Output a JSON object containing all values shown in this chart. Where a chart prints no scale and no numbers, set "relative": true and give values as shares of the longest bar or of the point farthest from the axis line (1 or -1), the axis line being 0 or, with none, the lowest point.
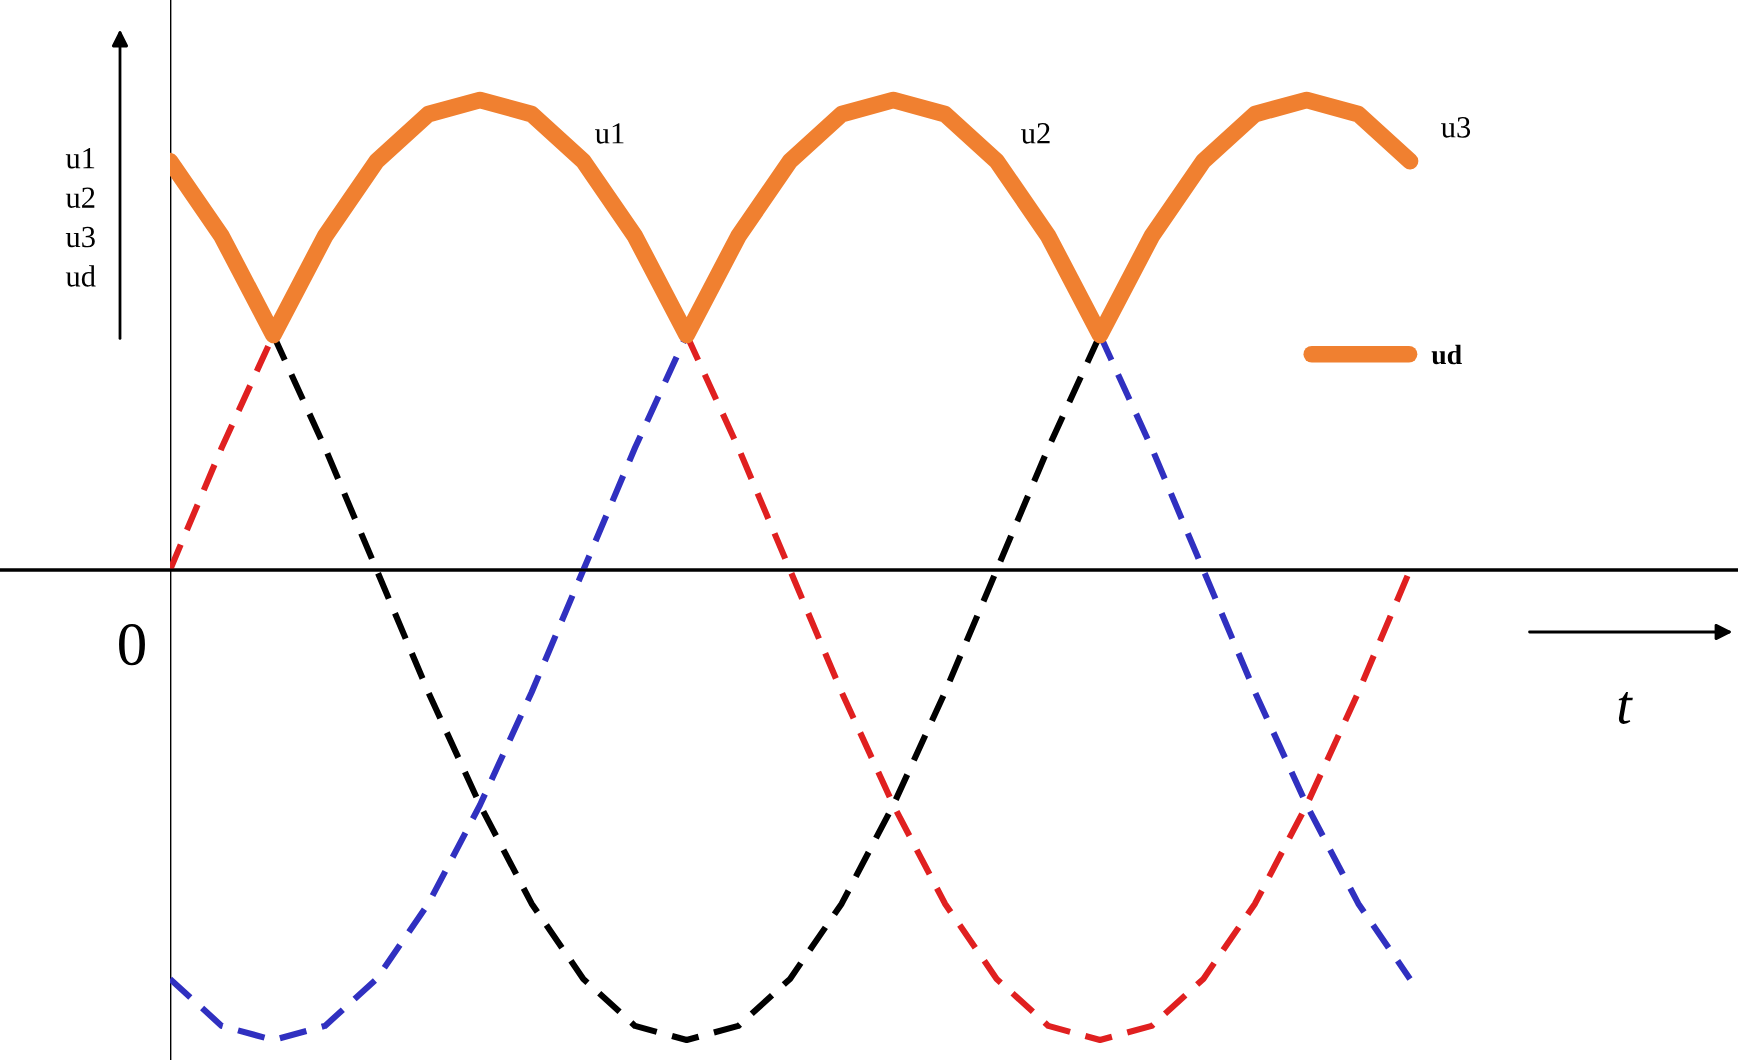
{
  "chart_data": {
    "type": "line",
    "relative": true,
    "ylabel": "u1\nu2\nu3\nud",
    "xlabel": "t",
    "categories": [
      null,
      null,
      null,
      null,
      null,
      null,
      null,
      null,
      null,
      null,
      null,
      null,
      null,
      null,
      null,
      null,
      null,
      null,
      null,
      null,
      null,
      null,
      null,
      null,
      null
    ],
    "series": [
      {
        "color": "#e02020",
        "line_style": "dashed",
        "values": [
          0,
          0.26,
          0.5,
          null,
          null,
          null,
          null,
          null,
          null,
          null,
          0.5,
          0.26,
          0,
          -0.26,
          -0.5,
          -0.71,
          -0.87,
          -0.97,
          -1,
          -0.97,
          -0.87,
          -0.71,
          -0.5,
          -0.26,
          0
        ]
      },
      {
        "color": "#3030c0",
        "line_style": "dashed",
        "values": [
          -0.87,
          -0.97,
          -1,
          -0.97,
          -0.87,
          -0.71,
          -0.5,
          -0.26,
          0,
          0.26,
          0.5,
          null,
          null,
          null,
          null,
          null,
          null,
          null,
          0.5,
          0.26,
          0,
          -0.26,
          -0.5,
          -0.71,
          -0.87
        ]
      },
      {
        "color": "#000000",
        "line_style": "dashed",
        "values": [
          null,
          null,
          0.5,
          0.26,
          0,
          -0.26,
          -0.5,
          -0.71,
          -0.87,
          -0.97,
          -1,
          -0.97,
          -0.87,
          -0.71,
          -0.5,
          -0.26,
          0,
          0.26,
          0.5,
          null,
          null,
          null,
          null,
          null,
          null
        ]
      },
      {
        "name": "ud",
        "color": "#f08030",
        "line_style": "solid",
        "values": [
          0.87,
          0.71,
          0.5,
          0.71,
          0.87,
          0.97,
          1,
          0.97,
          0.87,
          0.71,
          0.5,
          0.71,
          0.87,
          0.97,
          1,
          0.97,
          0.87,
          0.71,
          0.5,
          0.71,
          0.87,
          0.97,
          1,
          0.97,
          0.87
        ]
      }
    ],
    "annotations": [
      "u1",
      "u2",
      "u3",
      "0"
    ],
    "legend": "right",
    "marker": "none"
  }
}
